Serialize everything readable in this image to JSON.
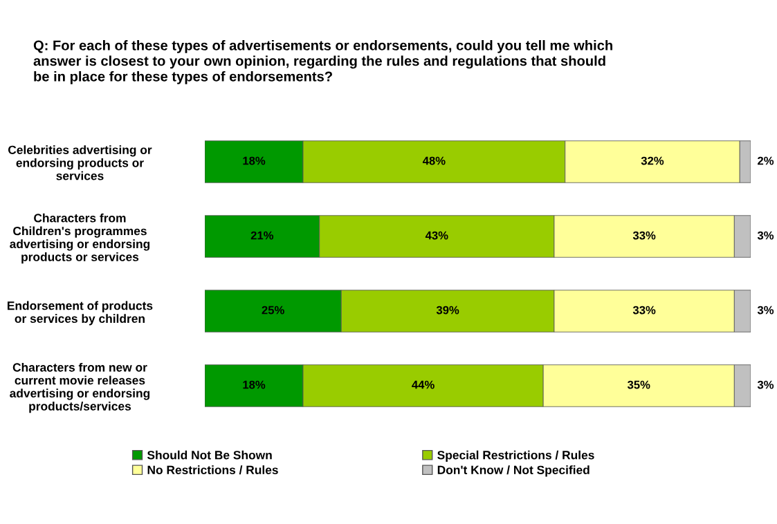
{
  "chart_data": {
    "type": "bar",
    "orientation": "horizontal",
    "stacked": true,
    "title": "Q: For each of these types of advertisements or endorsements, could you tell me which\nanswer is closest to your own opinion, regarding the rules and regulations that should\nbe in place for these types of endorsements?",
    "categories": [
      "Celebrities advertising or\nendorsing products or\nservices",
      "Characters from\nChildren's programmes\nadvertising or endorsing\nproducts or services",
      "Endorsement of products\nor services by children",
      "Characters from new or\ncurrent movie releases\nadvertising or endorsing\nproducts/services"
    ],
    "xlim": [
      0,
      100
    ],
    "tick_labels": "y",
    "grid": false,
    "legend": "bottom",
    "series": [
      {
        "name": "Should Not Be Shown",
        "color": "#009900",
        "values": [
          18,
          21,
          25,
          18
        ],
        "value_labels": [
          "18%",
          "21%",
          "25%",
          "18%"
        ]
      },
      {
        "name": "Special Restrictions / Rules",
        "color": "#99cc00",
        "values": [
          48,
          43,
          39,
          44
        ],
        "value_labels": [
          "48%",
          "43%",
          "39%",
          "44%"
        ]
      },
      {
        "name": "No Restrictions / Rules",
        "color": "#ffff99",
        "values": [
          32,
          33,
          33,
          35
        ],
        "value_labels": [
          "32%",
          "33%",
          "33%",
          "35%"
        ]
      },
      {
        "name": "Don't Know / Not Specified",
        "color": "#c0c0c0",
        "values": [
          2,
          3,
          3,
          3
        ],
        "value_labels": [
          "2%",
          "3%",
          "3%",
          "3%"
        ]
      }
    ]
  }
}
